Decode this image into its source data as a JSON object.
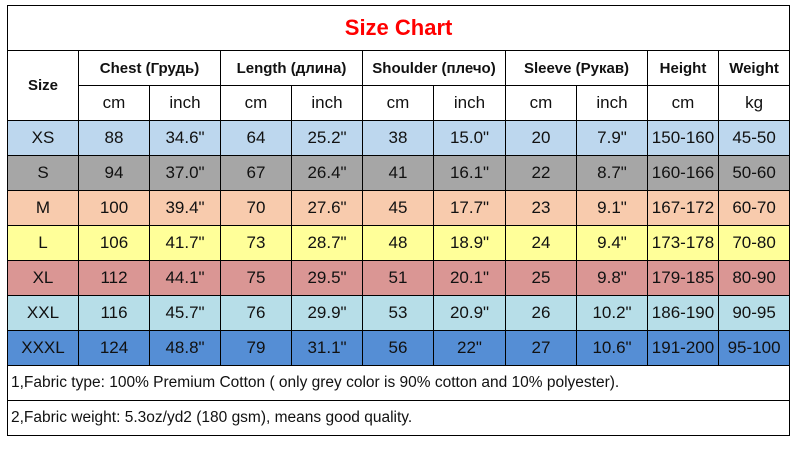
{
  "title": "Size Chart",
  "headers": {
    "size": "Size",
    "groups": [
      "Chest  (Грудь)",
      "Length (длина)",
      "Shoulder (плечо)",
      "Sleeve (Рукав)",
      "Height",
      "Weight"
    ],
    "units": [
      "cm",
      "inch",
      "cm",
      "inch",
      "cm",
      "inch",
      "cm",
      "inch",
      "cm",
      "kg"
    ]
  },
  "rows": [
    {
      "color": "#bdd7ee",
      "cells": [
        "XS",
        "88",
        "34.6\"",
        "64",
        "25.2\"",
        "38",
        "15.0\"",
        "20",
        "7.9\"",
        "150-160",
        "45-50"
      ]
    },
    {
      "color": "#a6a6a6",
      "cells": [
        "S",
        "94",
        "37.0\"",
        "67",
        "26.4\"",
        "41",
        "16.1\"",
        "22",
        "8.7\"",
        "160-166",
        "50-60"
      ]
    },
    {
      "color": "#f8cbad",
      "cells": [
        "M",
        "100",
        "39.4\"",
        "70",
        "27.6\"",
        "45",
        "17.7\"",
        "23",
        "9.1\"",
        "167-172",
        "60-70"
      ]
    },
    {
      "color": "#ffff99",
      "cells": [
        "L",
        "106",
        "41.7\"",
        "73",
        "28.7\"",
        "48",
        "18.9\"",
        "24",
        "9.4\"",
        "173-178",
        "70-80"
      ]
    },
    {
      "color": "#da9694",
      "cells": [
        "XL",
        "112",
        "44.1\"",
        "75",
        "29.5\"",
        "51",
        "20.1\"",
        "25",
        "9.8\"",
        "179-185",
        "80-90"
      ]
    },
    {
      "color": "#b7dee8",
      "cells": [
        "XXL",
        "116",
        "45.7\"",
        "76",
        "29.9\"",
        "53",
        "20.9\"",
        "26",
        "10.2\"",
        "186-190",
        "90-95"
      ]
    },
    {
      "color": "#558ed5",
      "cells": [
        "XXXL",
        "124",
        "48.8\"",
        "79",
        "31.1\"",
        "56",
        "22\"",
        "27",
        "10.6\"",
        "191-200",
        "95-100"
      ]
    }
  ],
  "notes": [
    "1,Fabric type: 100% Premium Cotton ( only grey color is 90% cotton and 10% polyester).",
    "2,Fabric weight: 5.3oz/yd2 (180 gsm), means good quality."
  ]
}
